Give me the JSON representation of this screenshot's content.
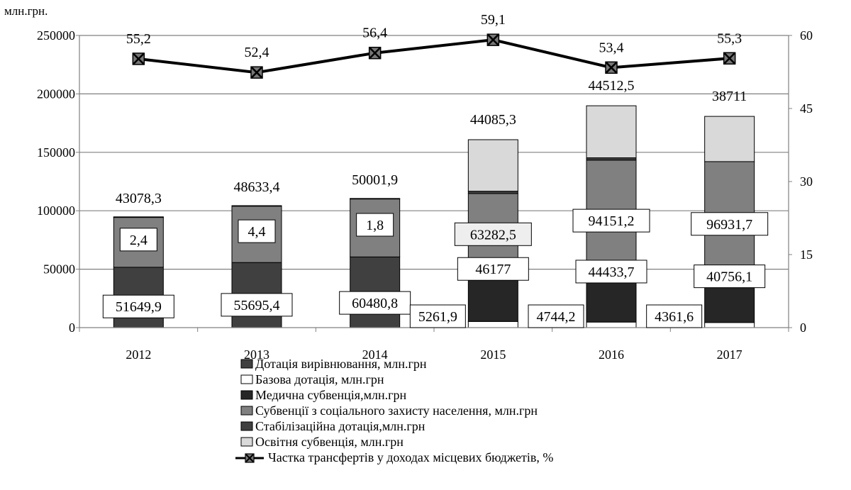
{
  "chart_data": {
    "type": "bar",
    "stacked": true,
    "secondary_type": "line",
    "ylabel": "млн.грн.",
    "ylim": [
      0,
      250000
    ],
    "y2lim": [
      0,
      60
    ],
    "yticks": [
      "0",
      "50000",
      "100000",
      "150000",
      "200000",
      "250000"
    ],
    "y2ticks": [
      "0",
      "15",
      "30",
      "45",
      "60"
    ],
    "grid": true,
    "legend_placement": "bottom",
    "categories": [
      "2012",
      "2013",
      "2014",
      "2015",
      "2016",
      "2017"
    ],
    "series": [
      {
        "name": "Дотація вирівнювання, млн.грн",
        "color": "#404040",
        "labeled": true,
        "values": [
          51649.9,
          55695.4,
          60480.8,
          0,
          0,
          0
        ],
        "labels": [
          "51649,9",
          "55695,4",
          "60480,8",
          "",
          "",
          ""
        ]
      },
      {
        "name": "Базова дотація, млн.грн",
        "color": "#ffffff",
        "labeled": true,
        "values": [
          0,
          0,
          0,
          5261.9,
          4744.2,
          4361.6
        ],
        "labels": [
          "",
          "",
          "",
          "5261,9",
          "4744,2",
          "4361,6"
        ]
      },
      {
        "name": "Медична субвенція,млн.грн",
        "color": "#262626",
        "labeled": true,
        "values": [
          0,
          0,
          0,
          46177,
          44433.7,
          40756.1
        ],
        "labels": [
          "",
          "",
          "",
          "46177",
          "44433,7",
          "40756,1"
        ]
      },
      {
        "name": "Субвенції з соціального захисту населення, млн.грн",
        "color": "#808080",
        "labeled": true,
        "values": [
          43078.3,
          48633.4,
          50001.9,
          63282.5,
          94151.2,
          96931.7
        ],
        "labels": [
          "43078,3",
          "48633,4",
          "50001,9",
          "63282,5",
          "94151,2",
          "96931,7"
        ]
      },
      {
        "name": "Стабілізаційна дотація,млн.грн",
        "color": "#404040",
        "labeled": true,
        "values": [
          2.4,
          4.4,
          1.8,
          2000,
          2000,
          0
        ],
        "labels": [
          "2,4",
          "4,4",
          "1,8",
          "",
          "",
          ""
        ]
      },
      {
        "name": "Освітня субвенція, млн.грн",
        "color": "#d9d9d9",
        "labeled": true,
        "values": [
          0,
          0,
          0,
          44085.3,
          44512.5,
          38711
        ],
        "labels": [
          "",
          "",
          "",
          "44085,3",
          "44512,5",
          "38711"
        ]
      }
    ],
    "line_series": {
      "name": "Частка трансфертів у доходах місцевих бюджетів, %",
      "color": "#000000",
      "values": [
        55.2,
        52.4,
        56.4,
        59.1,
        53.4,
        55.3
      ],
      "labels": [
        "55,2",
        "52,4",
        "56,4",
        "59,1",
        "53,4",
        "55,3"
      ]
    }
  }
}
